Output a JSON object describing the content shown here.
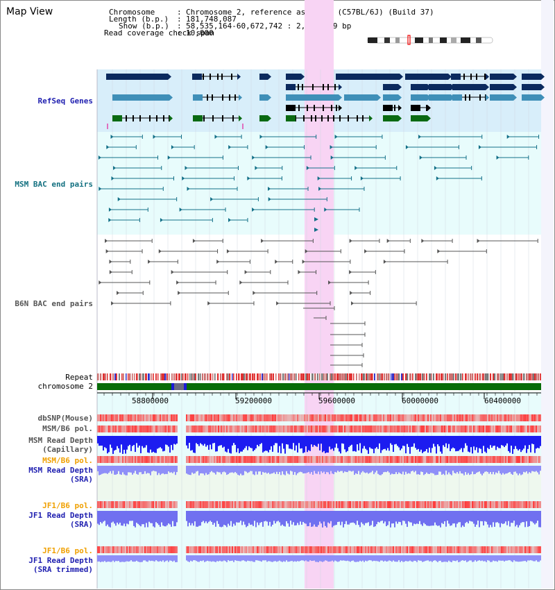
{
  "window": {
    "title": "Map View"
  },
  "header": {
    "chromosome_label": "Chromosome",
    "chromosome_value": "Chromosome 2, reference assembly (C57BL/6J) (Build 37)",
    "length_label": "Length (b.p.)",
    "length_value": "181,748,087",
    "show_label": "Show (b.p.)",
    "show_value": "58,535,164-60,672,742 : 2,137,579 bp",
    "span_label": "Read coverage check span",
    "span_value": "10,000"
  },
  "tracks": {
    "refseq": "RefSeq Genes",
    "msm_bac": "MSM BAC end pairs",
    "b6n_bac": "B6N BAC end pairs",
    "repeat": "Repeat",
    "chrom": "chromosome 2",
    "dbsnp": "dbSNP(Mouse)",
    "msm_pol": "MSM/B6 pol.",
    "msm_depth_cap_1": "MSM Read Depth",
    "msm_depth_cap_2": "(Capillary)",
    "msm_pol_sra": "MSM/B6 pol.",
    "msm_depth_sra_1": "MSM Read Depth",
    "msm_depth_sra_2": "(SRA)",
    "jf1_pol": "JF1/B6 pol.",
    "jf1_depth_1": "JF1 Read Depth",
    "jf1_depth_2": "(SRA)",
    "jf1_pol_trim": "JF1/B6 pol.",
    "jf1_trim_1": "JF1 Read Depth",
    "jf1_trim_2": "(SRA trimmed)"
  },
  "axis": {
    "ticks": [
      "58800000",
      "59200000",
      "59600000",
      "60000000",
      "60400000"
    ]
  },
  "colors": {
    "refseq_bg": "#d8eefa",
    "bac_bg": "#e8fcfc",
    "highlight": "#f8d4f4",
    "gene_navy": "#0b2a5e",
    "gene_teal": "#3f8fb8",
    "gene_green": "#0a6a12",
    "msm_bac": "#126f87",
    "b6n_bac": "#555555",
    "repeat_red": "#e03030",
    "chrom_green": "#086c08",
    "title_blue": "#1f1fb0",
    "title_orange": "#f0a000",
    "title_teal": "#137080",
    "depth_blue": "#1c1cf0",
    "depth_light": "#8f8ff8"
  }
}
